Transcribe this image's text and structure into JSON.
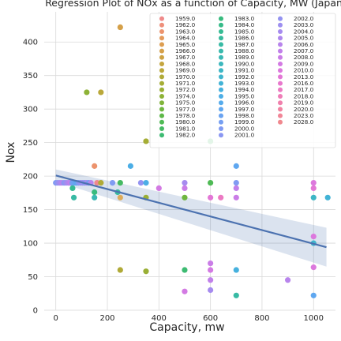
{
  "chart_data": {
    "type": "scatter",
    "title": "Regression Plot of NOx as a function of Capacity, MW (Japan)",
    "xlabel": "Capacity, mw",
    "ylabel": "Nox",
    "xlim": [
      -45,
      1085
    ],
    "ylim": [
      0,
      445
    ],
    "xticks": [
      0,
      200,
      400,
      600,
      800,
      1000
    ],
    "yticks": [
      0,
      50,
      100,
      150,
      200,
      250,
      300,
      350,
      400
    ],
    "grid": true,
    "legend_position": "top-right",
    "legend_entries": [
      {
        "label": "1959.0",
        "color": "#ef8a8a"
      },
      {
        "label": "1962.0",
        "color": "#ee8f7a"
      },
      {
        "label": "1963.0",
        "color": "#ec936d"
      },
      {
        "label": "1964.0",
        "color": "#e49a5b"
      },
      {
        "label": "1965.0",
        "color": "#dd9d50"
      },
      {
        "label": "1966.0",
        "color": "#d5a049"
      },
      {
        "label": "1967.0",
        "color": "#cda243"
      },
      {
        "label": "1968.0",
        "color": "#c4a53e"
      },
      {
        "label": "1969.0",
        "color": "#baa83a"
      },
      {
        "label": "1970.0",
        "color": "#b0aa37"
      },
      {
        "label": "1971.0",
        "color": "#a5ad35"
      },
      {
        "label": "1972.0",
        "color": "#9aaf35"
      },
      {
        "label": "1974.0",
        "color": "#8db236"
      },
      {
        "label": "1975.0",
        "color": "#7fb43a"
      },
      {
        "label": "1977.0",
        "color": "#6fb640"
      },
      {
        "label": "1978.0",
        "color": "#5db848"
      },
      {
        "label": "1980.0",
        "color": "#4fba55"
      },
      {
        "label": "1981.0",
        "color": "#45ba63"
      },
      {
        "label": "1982.0",
        "color": "#3dbb72"
      },
      {
        "label": "1983.0",
        "color": "#38bb7e"
      },
      {
        "label": "1984.0",
        "color": "#36bb89"
      },
      {
        "label": "1985.0",
        "color": "#36bb93"
      },
      {
        "label": "1986.0",
        "color": "#37ba9c"
      },
      {
        "label": "1987.0",
        "color": "#38baa4"
      },
      {
        "label": "1988.0",
        "color": "#39b9ac"
      },
      {
        "label": "1989.0",
        "color": "#3ab8b4"
      },
      {
        "label": "1990.0",
        "color": "#3cb7bd"
      },
      {
        "label": "1991.0",
        "color": "#3db6c5"
      },
      {
        "label": "1992.0",
        "color": "#3fb5cd"
      },
      {
        "label": "1993.0",
        "color": "#42b3d6"
      },
      {
        "label": "1994.0",
        "color": "#46b1de"
      },
      {
        "label": "1995.0",
        "color": "#4caee6"
      },
      {
        "label": "1996.0",
        "color": "#55abec"
      },
      {
        "label": "1997.0",
        "color": "#5fa7f0"
      },
      {
        "label": "1998.0",
        "color": "#6aa3f1"
      },
      {
        "label": "1999.0",
        "color": "#759ff2"
      },
      {
        "label": "2000.0",
        "color": "#809bf2"
      },
      {
        "label": "2001.0",
        "color": "#8a97f2"
      },
      {
        "label": "2002.0",
        "color": "#9493f1"
      },
      {
        "label": "2003.0",
        "color": "#9d8ff0"
      },
      {
        "label": "2004.0",
        "color": "#a68bef"
      },
      {
        "label": "2005.0",
        "color": "#af87ee"
      },
      {
        "label": "2006.0",
        "color": "#b884ec"
      },
      {
        "label": "2007.0",
        "color": "#c180ea"
      },
      {
        "label": "2008.0",
        "color": "#ca7de7"
      },
      {
        "label": "2009.0",
        "color": "#d37ae3"
      },
      {
        "label": "2010.0",
        "color": "#dc78dd"
      },
      {
        "label": "2013.0",
        "color": "#e377d6"
      },
      {
        "label": "2016.0",
        "color": "#e878cd"
      },
      {
        "label": "2017.0",
        "color": "#ec7ac3"
      },
      {
        "label": "2018.0",
        "color": "#ef7db8"
      },
      {
        "label": "2019.0",
        "color": "#f080ad"
      },
      {
        "label": "2020.0",
        "color": "#f183a2"
      },
      {
        "label": "2023.0",
        "color": "#f18697"
      },
      {
        "label": "2028.0",
        "color": "#f0888e"
      }
    ],
    "points": [
      {
        "x": 250,
        "y": 422,
        "color": "#d5a049"
      },
      {
        "x": 120,
        "y": 325,
        "color": "#8db236"
      },
      {
        "x": 175,
        "y": 325,
        "color": "#baa83a"
      },
      {
        "x": 350,
        "y": 252,
        "color": "#a5ad35"
      },
      {
        "x": 600,
        "y": 252,
        "color": "#45ba63"
      },
      {
        "x": 290,
        "y": 215,
        "color": "#4caee6"
      },
      {
        "x": 150,
        "y": 215,
        "color": "#ec936d"
      },
      {
        "x": 700,
        "y": 215,
        "color": "#5fa7f0"
      },
      {
        "x": 0,
        "y": 190,
        "color": "#809bf2"
      },
      {
        "x": 8,
        "y": 190,
        "color": "#9493f1"
      },
      {
        "x": 16,
        "y": 190,
        "color": "#a68bef"
      },
      {
        "x": 24,
        "y": 190,
        "color": "#b884ec"
      },
      {
        "x": 32,
        "y": 190,
        "color": "#8a97f2"
      },
      {
        "x": 40,
        "y": 190,
        "color": "#9d8ff0"
      },
      {
        "x": 48,
        "y": 190,
        "color": "#af87ee"
      },
      {
        "x": 56,
        "y": 190,
        "color": "#c180ea"
      },
      {
        "x": 64,
        "y": 190,
        "color": "#759ff2"
      },
      {
        "x": 72,
        "y": 190,
        "color": "#6aa3f1"
      },
      {
        "x": 80,
        "y": 190,
        "color": "#5fa7f0"
      },
      {
        "x": 88,
        "y": 190,
        "color": "#809bf2"
      },
      {
        "x": 96,
        "y": 190,
        "color": "#9493f1"
      },
      {
        "x": 104,
        "y": 190,
        "color": "#9d8ff0"
      },
      {
        "x": 112,
        "y": 190,
        "color": "#8a97f2"
      },
      {
        "x": 120,
        "y": 190,
        "color": "#a68bef"
      },
      {
        "x": 128,
        "y": 190,
        "color": "#759ff2"
      },
      {
        "x": 136,
        "y": 190,
        "color": "#b884ec"
      },
      {
        "x": 160,
        "y": 190,
        "color": "#f0888e"
      },
      {
        "x": 175,
        "y": 190,
        "color": "#b0aa37"
      },
      {
        "x": 220,
        "y": 190,
        "color": "#809bf2"
      },
      {
        "x": 250,
        "y": 190,
        "color": "#45ba63"
      },
      {
        "x": 330,
        "y": 190,
        "color": "#9493f1"
      },
      {
        "x": 350,
        "y": 190,
        "color": "#4caee6"
      },
      {
        "x": 500,
        "y": 190,
        "color": "#a68bef"
      },
      {
        "x": 600,
        "y": 190,
        "color": "#4fba55"
      },
      {
        "x": 700,
        "y": 190,
        "color": "#809bf2"
      },
      {
        "x": 1000,
        "y": 190,
        "color": "#dc78dd"
      },
      {
        "x": 1000,
        "y": 182,
        "color": "#e377d6"
      },
      {
        "x": 400,
        "y": 182,
        "color": "#d37ae3"
      },
      {
        "x": 500,
        "y": 182,
        "color": "#ca7de7"
      },
      {
        "x": 700,
        "y": 182,
        "color": "#c180ea"
      },
      {
        "x": 65,
        "y": 182,
        "color": "#36bb93"
      },
      {
        "x": 70,
        "y": 168,
        "color": "#38baa4"
      },
      {
        "x": 150,
        "y": 168,
        "color": "#3ab8b4"
      },
      {
        "x": 150,
        "y": 176,
        "color": "#38bb7e"
      },
      {
        "x": 240,
        "y": 176,
        "color": "#37ba9c"
      },
      {
        "x": 250,
        "y": 168,
        "color": "#ddab5a"
      },
      {
        "x": 350,
        "y": 168,
        "color": "#9aaf35"
      },
      {
        "x": 500,
        "y": 168,
        "color": "#6fb640"
      },
      {
        "x": 600,
        "y": 168,
        "color": "#e377d6"
      },
      {
        "x": 640,
        "y": 168,
        "color": "#ec7ac3"
      },
      {
        "x": 700,
        "y": 168,
        "color": "#ca7de7"
      },
      {
        "x": 1000,
        "y": 168,
        "color": "#3db6c5"
      },
      {
        "x": 1055,
        "y": 168,
        "color": "#42b3d6"
      },
      {
        "x": 1000,
        "y": 110,
        "color": "#dc78dd"
      },
      {
        "x": 1000,
        "y": 100,
        "color": "#3fb5cd"
      },
      {
        "x": 250,
        "y": 60,
        "color": "#b0aa37"
      },
      {
        "x": 350,
        "y": 58,
        "color": "#9aaf35"
      },
      {
        "x": 500,
        "y": 60,
        "color": "#3dbb72"
      },
      {
        "x": 600,
        "y": 70,
        "color": "#ca7de7"
      },
      {
        "x": 600,
        "y": 60,
        "color": "#d37ae3"
      },
      {
        "x": 700,
        "y": 60,
        "color": "#46b1de"
      },
      {
        "x": 1000,
        "y": 64,
        "color": "#dc78dd"
      },
      {
        "x": 600,
        "y": 45,
        "color": "#c180ea"
      },
      {
        "x": 900,
        "y": 45,
        "color": "#b884ec"
      },
      {
        "x": 500,
        "y": 28,
        "color": "#d37ae3"
      },
      {
        "x": 600,
        "y": 30,
        "color": "#a68bef"
      },
      {
        "x": 700,
        "y": 22,
        "color": "#38baa4"
      },
      {
        "x": 1000,
        "y": 22,
        "color": "#5fa7f0"
      }
    ],
    "regression": {
      "x": [
        0,
        1050
      ],
      "y": [
        201,
        94
      ],
      "ci_upper": [
        210,
        123
      ],
      "ci_lower": [
        192,
        65
      ],
      "color": "#4c72b0"
    }
  }
}
